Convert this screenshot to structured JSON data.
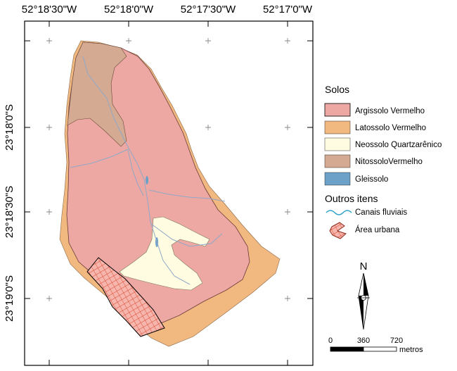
{
  "map": {
    "top_labels": [
      "52°18'30\"W",
      "52°18'0\"W",
      "52°17'30\"W",
      "52°17'0\"W"
    ],
    "left_labels": [
      "23°18'0\"S",
      "23°18'30\"S",
      "23°19'0\"S"
    ]
  },
  "legend": {
    "soils_title": "Solos",
    "soils": [
      {
        "label": "Argissolo Vermelho",
        "color": "#eea8a3"
      },
      {
        "label": "Latossolo Vermelho",
        "color": "#f1b880"
      },
      {
        "label": "Neossolo Quartzarênico",
        "color": "#fffce1"
      },
      {
        "label": "NitossoloVermelho",
        "color": "#d4aa93"
      },
      {
        "label": "Gleissolo",
        "color": "#6ea1c8"
      }
    ],
    "other_title": "Outros itens",
    "rivers_label": "Canais fluviais",
    "rivers_color": "#2aa0c8",
    "urban_label": "Área urbana",
    "urban_color": "#d9442b"
  },
  "north_arrow": {
    "label": "N"
  },
  "scale_bar": {
    "ticks": [
      "0",
      "360",
      "720"
    ],
    "unit": "metros"
  }
}
